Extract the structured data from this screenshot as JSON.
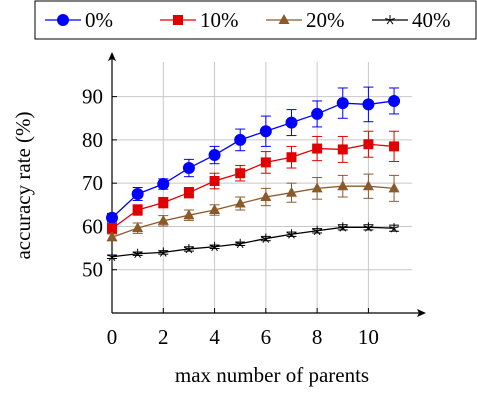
{
  "chart_data": {
    "type": "line",
    "title": "",
    "xlabel": "max number of parents",
    "ylabel": "accuracy rate (%)",
    "x": [
      0,
      1,
      2,
      3,
      4,
      5,
      6,
      7,
      8,
      9,
      10,
      11
    ],
    "xticks": [
      "0",
      "2",
      "4",
      "6",
      "8",
      "10"
    ],
    "yticks": [
      "50",
      "60",
      "70",
      "80",
      "90"
    ],
    "xlim": [
      0,
      11.7
    ],
    "ylim": [
      40,
      98
    ],
    "grid": true,
    "legend_position": "top",
    "series": [
      {
        "name": "0%",
        "color": "#0000ff",
        "marker": "circle",
        "values": [
          62,
          67.5,
          69.8,
          73.5,
          76.5,
          80,
          82,
          84,
          86,
          88.5,
          88.2,
          89
        ],
        "errors": [
          1,
          1.5,
          1.2,
          2,
          2,
          2.5,
          3.5,
          3,
          3,
          3.5,
          4,
          3
        ]
      },
      {
        "name": "10%",
        "color": "#e00000",
        "marker": "square",
        "values": [
          59.5,
          63.8,
          65.5,
          67.8,
          70.5,
          72.3,
          74.8,
          76,
          78,
          77.8,
          79,
          78.5
        ],
        "errors": [
          1.2,
          1.2,
          1.2,
          1.2,
          1.8,
          1.8,
          2.5,
          2.5,
          2.8,
          3,
          3,
          3.5
        ]
      },
      {
        "name": "20%",
        "color": "#8b5a2b",
        "marker": "triangle",
        "values": [
          57.5,
          59.6,
          61.3,
          62.6,
          63.8,
          65.3,
          66.8,
          67.8,
          68.8,
          69.3,
          69.3,
          68.8
        ],
        "errors": [
          0.8,
          1.2,
          1.2,
          1.2,
          1.2,
          1.5,
          2,
          2.2,
          2.5,
          2.5,
          2.8,
          3
        ]
      },
      {
        "name": "40%",
        "color": "#000000",
        "marker": "star",
        "values": [
          53,
          53.7,
          54,
          54.8,
          55.3,
          56,
          57.2,
          58.2,
          59,
          59.8,
          59.8,
          59.6
        ],
        "errors": [
          0.4,
          0.4,
          0.4,
          0.5,
          0.4,
          0.4,
          0.5,
          0.5,
          0.5,
          0.6,
          0.6,
          0.7
        ]
      }
    ]
  }
}
